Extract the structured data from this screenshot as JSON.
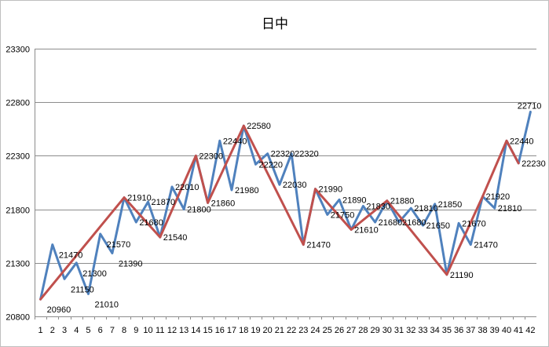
{
  "chart_data": {
    "type": "line",
    "title": "日中",
    "xlabel": "",
    "ylabel": "",
    "ylim": [
      20800,
      23300
    ],
    "y_ticks": [
      "23300",
      "22800",
      "22300",
      "21800",
      "21300",
      "20800"
    ],
    "categories": [
      "1",
      "2",
      "3",
      "4",
      "5",
      "6",
      "7",
      "8",
      "9",
      "10",
      "11",
      "12",
      "13",
      "14",
      "15",
      "16",
      "17",
      "18",
      "19",
      "20",
      "21",
      "22",
      "23",
      "24",
      "25",
      "26",
      "27",
      "28",
      "29",
      "30",
      "31",
      "32",
      "33",
      "34",
      "35",
      "36",
      "37",
      "38",
      "39",
      "40",
      "41",
      "42"
    ],
    "grid": true,
    "legend": "none",
    "series": [
      {
        "color": "#4f81bd",
        "values": [
          20960,
          21470,
          21150,
          21300,
          21010,
          21570,
          21390,
          21910,
          21680,
          21870,
          21540,
          22010,
          21800,
          22300,
          21860,
          22440,
          21980,
          22580,
          22220,
          22320,
          22030,
          22320,
          21470,
          21990,
          21750,
          21890,
          21610,
          21830,
          21680,
          21880,
          21680,
          21810,
          21650,
          21850,
          21190,
          21670,
          21470,
          21920,
          21810,
          22440,
          22230,
          22710
        ]
      },
      {
        "color": "#c0504d",
        "points": [
          [
            1,
            20960
          ],
          [
            8,
            21910
          ],
          [
            11,
            21540
          ],
          [
            14,
            22300
          ],
          [
            15,
            21860
          ],
          [
            18,
            22580
          ],
          [
            23,
            21470
          ],
          [
            24,
            21990
          ],
          [
            27,
            21610
          ],
          [
            30,
            21880
          ],
          [
            35,
            21190
          ],
          [
            38,
            21920
          ],
          [
            40,
            22440
          ],
          [
            41,
            22230
          ]
        ]
      }
    ],
    "data_labels": [
      {
        "x": 1,
        "text": "20960",
        "pos": "below"
      },
      {
        "x": 2,
        "text": "21470",
        "pos": "below"
      },
      {
        "x": 3,
        "text": "21150",
        "pos": "below"
      },
      {
        "x": 4,
        "text": "21300",
        "pos": "below"
      },
      {
        "x": 5,
        "text": "21010",
        "pos": "below"
      },
      {
        "x": 6,
        "text": "21570",
        "pos": "below"
      },
      {
        "x": 7,
        "text": "21390",
        "pos": "below"
      },
      {
        "x": 8,
        "text": "21910",
        "pos": "right"
      },
      {
        "x": 9,
        "text": "21680",
        "pos": "right"
      },
      {
        "x": 10,
        "text": "21870",
        "pos": "right"
      },
      {
        "x": 11,
        "text": "21540",
        "pos": "right"
      },
      {
        "x": 12,
        "text": "22010",
        "pos": "right"
      },
      {
        "x": 13,
        "text": "21800",
        "pos": "right"
      },
      {
        "x": 14,
        "text": "22300",
        "pos": "right"
      },
      {
        "x": 15,
        "text": "21860",
        "pos": "right"
      },
      {
        "x": 16,
        "text": "22440",
        "pos": "right"
      },
      {
        "x": 17,
        "text": "21980",
        "pos": "right"
      },
      {
        "x": 18,
        "text": "22580",
        "pos": "right"
      },
      {
        "x": 19,
        "text": "22220",
        "pos": "right"
      },
      {
        "x": 20,
        "text": "22320",
        "pos": "right"
      },
      {
        "x": 21,
        "text": "22030",
        "pos": "right"
      },
      {
        "x": 22,
        "text": "22320",
        "pos": "right"
      },
      {
        "x": 23,
        "text": "21470",
        "pos": "right"
      },
      {
        "x": 24,
        "text": "21990",
        "pos": "right"
      },
      {
        "x": 25,
        "text": "21750",
        "pos": "right"
      },
      {
        "x": 26,
        "text": "21890",
        "pos": "right"
      },
      {
        "x": 27,
        "text": "21610",
        "pos": "right"
      },
      {
        "x": 28,
        "text": "21830",
        "pos": "right"
      },
      {
        "x": 29,
        "text": "21680",
        "pos": "right"
      },
      {
        "x": 30,
        "text": "21880",
        "pos": "right"
      },
      {
        "x": 31,
        "text": "21680",
        "pos": "right"
      },
      {
        "x": 32,
        "text": "21810",
        "pos": "right"
      },
      {
        "x": 33,
        "text": "21650",
        "pos": "right"
      },
      {
        "x": 34,
        "text": "21850",
        "pos": "right"
      },
      {
        "x": 35,
        "text": "21190",
        "pos": "right"
      },
      {
        "x": 36,
        "text": "21670",
        "pos": "right"
      },
      {
        "x": 37,
        "text": "21470",
        "pos": "right"
      },
      {
        "x": 38,
        "text": "21920",
        "pos": "right"
      },
      {
        "x": 39,
        "text": "21810",
        "pos": "right"
      },
      {
        "x": 40,
        "text": "22440",
        "pos": "right"
      },
      {
        "x": 41,
        "text": "22230",
        "pos": "right"
      },
      {
        "x": 42,
        "text": "22710",
        "pos": "left"
      }
    ]
  }
}
